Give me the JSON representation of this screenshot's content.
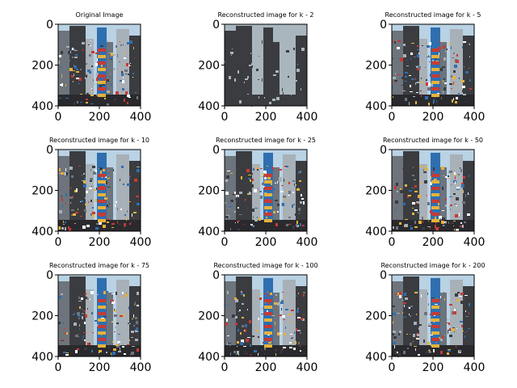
{
  "figure": {
    "panels": [
      {
        "title": "Original Image",
        "k": null,
        "x_ticks": [
          "0",
          "200",
          "400"
        ],
        "y_ticks": [
          "0",
          "200",
          "400"
        ]
      },
      {
        "title": "Reconstructed image for k - 2",
        "k": 2,
        "x_ticks": [
          "0",
          "200",
          "400"
        ],
        "y_ticks": [
          "0",
          "200",
          "400"
        ]
      },
      {
        "title": "Reconstructed image for k - 5",
        "k": 5,
        "x_ticks": [
          "0",
          "200",
          "400"
        ],
        "y_ticks": [
          "0",
          "200",
          "400"
        ]
      },
      {
        "title": "Reconstructed image for k - 10",
        "k": 10,
        "x_ticks": [
          "0",
          "200",
          "400"
        ],
        "y_ticks": [
          "0",
          "200",
          "400"
        ]
      },
      {
        "title": "Reconstructed image for k - 25",
        "k": 25,
        "x_ticks": [
          "0",
          "200",
          "400"
        ],
        "y_ticks": [
          "0",
          "200",
          "400"
        ]
      },
      {
        "title": "Reconstructed image for k - 50",
        "k": 50,
        "x_ticks": [
          "0",
          "200",
          "400"
        ],
        "y_ticks": [
          "0",
          "200",
          "400"
        ]
      },
      {
        "title": "Reconstructed image for k - 75",
        "k": 75,
        "x_ticks": [
          "0",
          "200",
          "400"
        ],
        "y_ticks": [
          "0",
          "200",
          "400"
        ]
      },
      {
        "title": "Reconstructed image for k - 100",
        "k": 100,
        "x_ticks": [
          "0",
          "200",
          "400"
        ],
        "y_ticks": [
          "0",
          "200",
          "400"
        ]
      },
      {
        "title": "Reconstructed image for k - 200",
        "k": 200,
        "x_ticks": [
          "0",
          "200",
          "400"
        ],
        "y_ticks": [
          "0",
          "200",
          "400"
        ]
      }
    ],
    "colors": {
      "sky": "#b9d2e4",
      "building_dark": "#3a3c40",
      "building_mid": "#6e747c",
      "building_light": "#a8b0b8",
      "sign_red": "#c83a34",
      "sign_yellow": "#e6b23a",
      "sign_blue": "#2f6fb0",
      "street": "#2a2a2e",
      "k2_dark": "#3b3c40",
      "k2_light": "#aab6be"
    }
  }
}
